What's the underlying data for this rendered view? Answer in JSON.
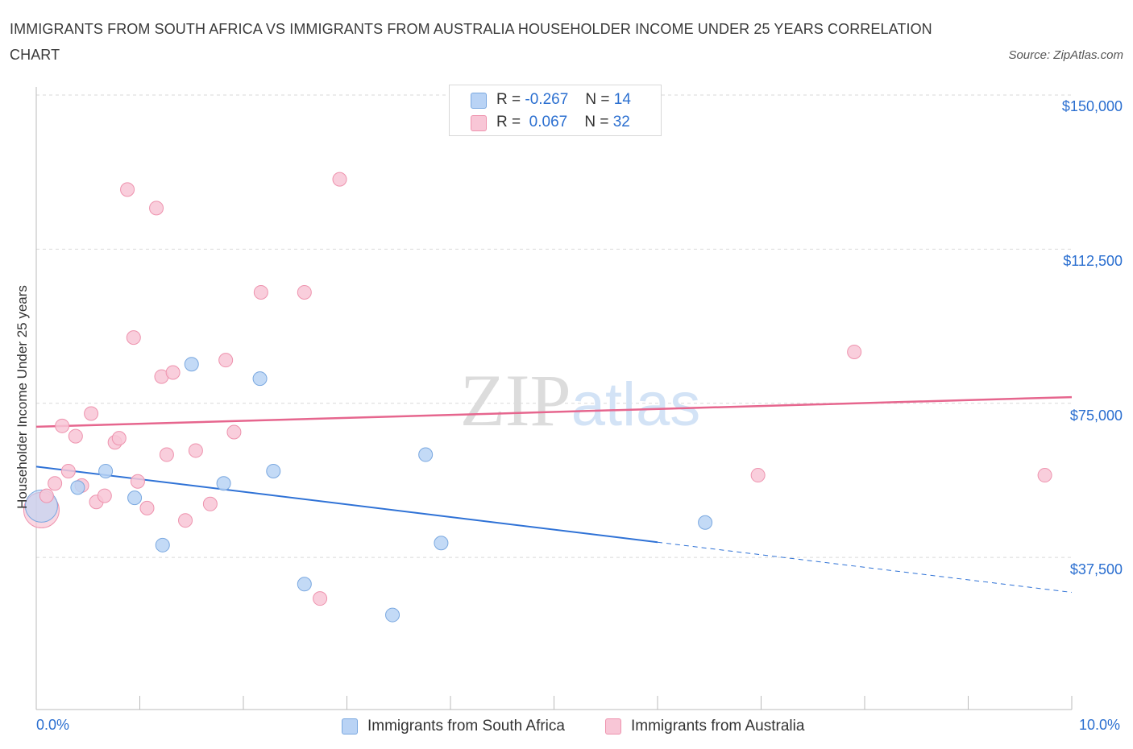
{
  "title": "IMMIGRANTS FROM SOUTH AFRICA VS IMMIGRANTS FROM AUSTRALIA HOUSEHOLDER INCOME UNDER 25 YEARS CORRELATION CHART",
  "source": "Source: ZipAtlas.com",
  "watermark": "ZIPatlas",
  "legend": {
    "row1": {
      "r_label": "R =",
      "r_value": "-0.267",
      "n_label": "N =",
      "n_value": "14"
    },
    "row2": {
      "r_label": "R =",
      "r_value": "0.067",
      "n_label": "N =",
      "n_value": "32"
    }
  },
  "colors": {
    "south_africa_fill": "#b9d3f5",
    "south_africa_stroke": "#7aa8e0",
    "south_africa_line": "#2f72d6",
    "australia_fill": "#f8c6d6",
    "australia_stroke": "#ee93ae",
    "australia_line": "#e6668e",
    "axis_label": "#2b6fd0",
    "grid": "#d9d9d9"
  },
  "chart_data": {
    "type": "scatter",
    "title": "IMMIGRANTS FROM SOUTH AFRICA VS IMMIGRANTS FROM AUSTRALIA HOUSEHOLDER INCOME UNDER 25 YEARS CORRELATION CHART",
    "xlabel": "",
    "ylabel": "Householder Income Under 25 years",
    "xlim": [
      0,
      10
    ],
    "ylim": [
      0,
      150000
    ],
    "x_tick_labels": [
      "0.0%",
      "10.0%"
    ],
    "y_ticks": [
      37500,
      75000,
      112500,
      150000
    ],
    "y_tick_labels": [
      "$37,500",
      "$75,000",
      "$112,500",
      "$150,000"
    ],
    "series": [
      {
        "name": "Immigrants from South Africa",
        "r": -0.267,
        "n": 14,
        "points": [
          {
            "x": 0.05,
            "y": 50000
          },
          {
            "x": 0.4,
            "y": 54500
          },
          {
            "x": 0.67,
            "y": 58500
          },
          {
            "x": 0.95,
            "y": 52000
          },
          {
            "x": 1.22,
            "y": 40500
          },
          {
            "x": 1.5,
            "y": 84500
          },
          {
            "x": 1.81,
            "y": 55500
          },
          {
            "x": 2.16,
            "y": 81000
          },
          {
            "x": 2.29,
            "y": 58500
          },
          {
            "x": 2.59,
            "y": 31000
          },
          {
            "x": 3.44,
            "y": 23500
          },
          {
            "x": 3.76,
            "y": 62500
          },
          {
            "x": 3.91,
            "y": 41000
          },
          {
            "x": 6.46,
            "y": 46000
          }
        ],
        "trend": {
          "x0": 0,
          "y0": 59600,
          "x1": 6.0,
          "y1": 41200,
          "dash_to_x": 10.0,
          "dash_to_y": 29000
        }
      },
      {
        "name": "Immigrants from Australia",
        "r": 0.067,
        "n": 32,
        "points": [
          {
            "x": 0.03,
            "y": 49000
          },
          {
            "x": 0.1,
            "y": 52500
          },
          {
            "x": 0.18,
            "y": 55500
          },
          {
            "x": 0.25,
            "y": 69500
          },
          {
            "x": 0.31,
            "y": 58500
          },
          {
            "x": 0.38,
            "y": 67000
          },
          {
            "x": 0.44,
            "y": 55000
          },
          {
            "x": 0.53,
            "y": 72500
          },
          {
            "x": 0.58,
            "y": 51000
          },
          {
            "x": 0.66,
            "y": 52500
          },
          {
            "x": 0.76,
            "y": 65500
          },
          {
            "x": 0.8,
            "y": 66500
          },
          {
            "x": 0.88,
            "y": 127000
          },
          {
            "x": 0.94,
            "y": 91000
          },
          {
            "x": 0.98,
            "y": 56000
          },
          {
            "x": 1.07,
            "y": 49500
          },
          {
            "x": 1.16,
            "y": 122500
          },
          {
            "x": 1.21,
            "y": 81500
          },
          {
            "x": 1.26,
            "y": 62500
          },
          {
            "x": 1.32,
            "y": 82500
          },
          {
            "x": 1.44,
            "y": 46500
          },
          {
            "x": 1.54,
            "y": 63500
          },
          {
            "x": 1.68,
            "y": 50500
          },
          {
            "x": 1.83,
            "y": 85500
          },
          {
            "x": 1.91,
            "y": 68000
          },
          {
            "x": 2.17,
            "y": 102000
          },
          {
            "x": 2.59,
            "y": 102000
          },
          {
            "x": 2.74,
            "y": 27500
          },
          {
            "x": 2.93,
            "y": 129500
          },
          {
            "x": 6.97,
            "y": 57500
          },
          {
            "x": 7.9,
            "y": 87500
          },
          {
            "x": 9.74,
            "y": 57500
          }
        ],
        "trend": {
          "x0": 0,
          "y0": 69300,
          "x1": 10.0,
          "y1": 76500
        }
      }
    ]
  }
}
